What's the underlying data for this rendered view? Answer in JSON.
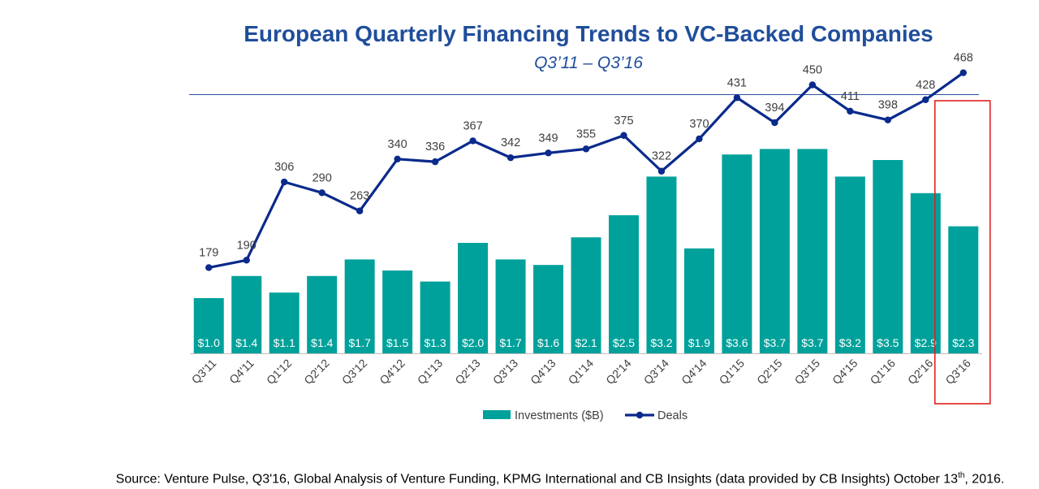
{
  "title": "European Quarterly Financing Trends to VC-Backed Companies",
  "subtitle": "Q3’11 – Q3’16",
  "source": {
    "prefix": "Source: Venture Pulse, Q3'16, Global Analysis of Venture Funding, KPMG International and CB Insights (data provided by CB Insights) October 13",
    "sup": "th",
    "suffix": ", 2016."
  },
  "colors": {
    "bars": "#00A19B",
    "line": "#0A2A8C",
    "title": "#1F4E9B",
    "highlight": "#E02020"
  },
  "chart_data": {
    "type": "bar+line",
    "categories": [
      "Q3'11",
      "Q4'11",
      "Q1'12",
      "Q2'12",
      "Q3'12",
      "Q4'12",
      "Q1'13",
      "Q2'13",
      "Q3'13",
      "Q4'13",
      "Q1'14",
      "Q2'14",
      "Q3'14",
      "Q4'14",
      "Q1'15",
      "Q2'15",
      "Q3'15",
      "Q4'15",
      "Q1'16",
      "Q2'16",
      "Q3'16"
    ],
    "series": [
      {
        "name": "Investments ($B)",
        "type": "bar",
        "values": [
          1.0,
          1.4,
          1.1,
          1.4,
          1.7,
          1.5,
          1.3,
          2.0,
          1.7,
          1.6,
          2.1,
          2.5,
          3.2,
          1.9,
          3.6,
          3.7,
          3.7,
          3.2,
          3.5,
          2.9,
          2.3
        ],
        "labels": [
          "$1.0",
          "$1.4",
          "$1.1",
          "$1.4",
          "$1.7",
          "$1.5",
          "$1.3",
          "$2.0",
          "$1.7",
          "$1.6",
          "$2.1",
          "$2.5",
          "$3.2",
          "$1.9",
          "$3.6",
          "$3.7",
          "$3.7",
          "$3.2",
          "$3.5",
          "$2.9",
          "$2.3"
        ]
      },
      {
        "name": "Deals",
        "type": "line",
        "values": [
          179,
          190,
          306,
          290,
          263,
          340,
          336,
          367,
          342,
          349,
          355,
          375,
          322,
          370,
          431,
          394,
          450,
          411,
          398,
          428,
          468
        ]
      }
    ],
    "bar_ylim": [
      0,
      4.0
    ],
    "line_ylim": [
      0,
      550
    ],
    "legend": [
      "Investments ($B)",
      "Deals"
    ],
    "legend_position": "bottom",
    "highlight_category": "Q3'16",
    "xlabel": "",
    "ylabel": ""
  }
}
